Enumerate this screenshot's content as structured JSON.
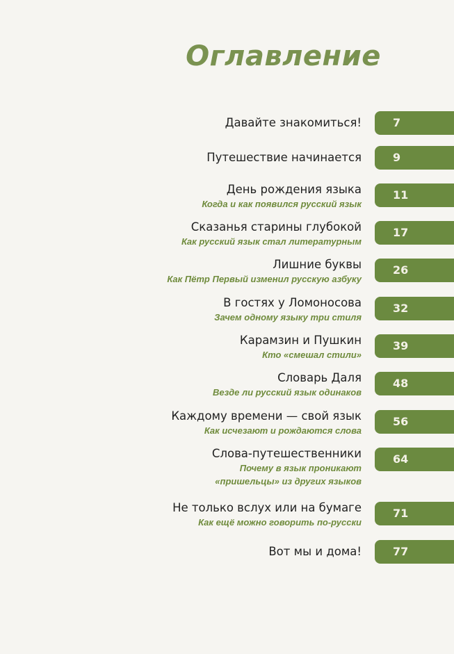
{
  "title": "Оглавление",
  "accent_color": "#6b8a40",
  "entries": [
    {
      "title": "Давайте знакомиться!",
      "subtitle": [],
      "page": "7"
    },
    {
      "title": "Путешествие начинается",
      "subtitle": [],
      "page": "9"
    },
    {
      "title": "День рождения языка",
      "subtitle": [
        "Когда и как появился русский язык"
      ],
      "page": "11"
    },
    {
      "title": "Сказанья старины глубокой",
      "subtitle": [
        "Как русский язык стал литературным"
      ],
      "page": "17"
    },
    {
      "title": "Лишние буквы",
      "subtitle": [
        "Как Пётр Первый изменил русскую азбуку"
      ],
      "page": "26"
    },
    {
      "title": "В гостях у Ломоносова",
      "subtitle": [
        "Зачем одному языку три стиля"
      ],
      "page": "32"
    },
    {
      "title": "Карамзин и Пушкин",
      "subtitle": [
        "Кто «смешал стили»"
      ],
      "page": "39"
    },
    {
      "title": "Словарь Даля",
      "subtitle": [
        "Везде ли русский язык одинаков"
      ],
      "page": "48"
    },
    {
      "title": "Каждому времени — свой язык",
      "subtitle": [
        "Как исчезают и рождаются слова"
      ],
      "page": "56"
    },
    {
      "title": "Слова-путешественники",
      "subtitle": [
        "Почему в язык проникают",
        "«пришельцы» из других языков"
      ],
      "page": "64"
    },
    {
      "title": "Не только вслух или на бумаге",
      "subtitle": [
        "Как ещё можно говорить по-русски"
      ],
      "page": "71"
    },
    {
      "title": "Вот мы и дома!",
      "subtitle": [],
      "page": "77"
    }
  ]
}
